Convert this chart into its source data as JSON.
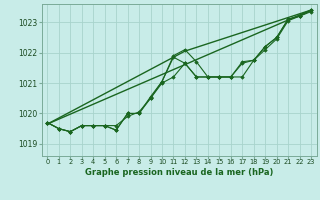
{
  "title": "Graphe pression niveau de la mer (hPa)",
  "bg_color": "#c8ece8",
  "grid_color": "#a8d4cc",
  "line_color": "#1a6620",
  "spine_color": "#7aaa98",
  "xlim": [
    -0.5,
    23.5
  ],
  "ylim": [
    1018.6,
    1023.6
  ],
  "yticks": [
    1019,
    1020,
    1021,
    1022,
    1023
  ],
  "xticks": [
    0,
    1,
    2,
    3,
    4,
    5,
    6,
    7,
    8,
    9,
    10,
    11,
    12,
    13,
    14,
    15,
    16,
    17,
    18,
    19,
    20,
    21,
    22,
    23
  ],
  "series1": [
    1019.7,
    1019.5,
    1019.4,
    1019.6,
    1019.6,
    1019.6,
    1019.6,
    1019.9,
    1020.05,
    1020.5,
    1021.05,
    1021.9,
    1022.1,
    1021.7,
    1021.2,
    1021.2,
    1021.2,
    1021.2,
    1021.75,
    1022.2,
    1022.5,
    1023.1,
    1023.2,
    1023.4
  ],
  "series2": [
    1019.7,
    1019.5,
    1019.4,
    1019.6,
    1019.6,
    1019.6,
    1019.45,
    1020.0,
    1020.0,
    1020.55,
    1021.05,
    1021.85,
    1021.65,
    1021.2,
    1021.2,
    1021.2,
    1021.2,
    1021.7,
    1021.75,
    1022.2,
    1022.5,
    1023.1,
    1023.2,
    1023.4
  ],
  "series3": [
    1019.7,
    1019.5,
    1019.4,
    1019.6,
    1019.6,
    1019.6,
    1019.45,
    1020.0,
    1020.0,
    1020.5,
    1021.0,
    1021.2,
    1021.65,
    1021.2,
    1021.2,
    1021.2,
    1021.2,
    1021.65,
    1021.75,
    1022.1,
    1022.45,
    1023.05,
    1023.2,
    1023.35
  ],
  "series4_x": [
    0,
    23
  ],
  "series4_y": [
    1019.65,
    1023.4
  ],
  "series5_x": [
    0,
    12,
    23
  ],
  "series5_y": [
    1019.65,
    1022.05,
    1023.4
  ]
}
